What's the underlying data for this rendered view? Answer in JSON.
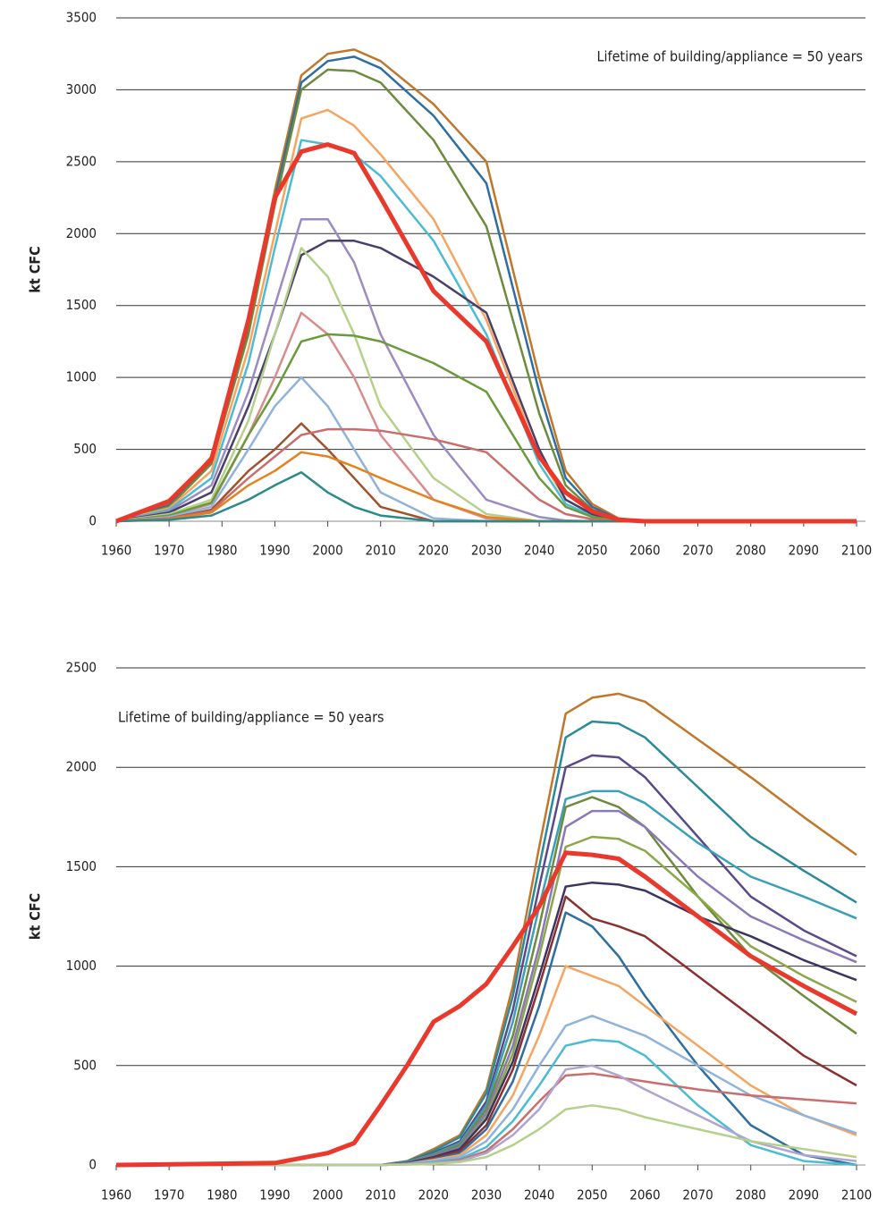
{
  "chart_data": [
    {
      "type": "line",
      "y_label": "kt CFC",
      "annotation": "Lifetime of building/appliance = 50 years",
      "annotation_corner": "top-right",
      "x": [
        1960,
        1970,
        1978,
        1985,
        1990,
        1995,
        2000,
        2005,
        2010,
        2020,
        2030,
        2040,
        2045,
        2050,
        2055,
        2060,
        2100
      ],
      "xlim": [
        1960,
        2100
      ],
      "xticks": [
        1960,
        1970,
        1980,
        1990,
        2000,
        2010,
        2020,
        2030,
        2040,
        2050,
        2060,
        2070,
        2080,
        2090,
        2100
      ],
      "ylim": [
        0,
        3500
      ],
      "yticks": [
        0,
        500,
        1000,
        1500,
        2000,
        2500,
        3000,
        3500
      ],
      "grid": true,
      "series": [
        {
          "color": "#c0772b",
          "values": [
            0,
            120,
            450,
            1400,
            2300,
            3100,
            3250,
            3280,
            3200,
            2900,
            2500,
            1000,
            350,
            120,
            20,
            0,
            0
          ]
        },
        {
          "color": "#2f6f9f",
          "values": [
            0,
            110,
            420,
            1350,
            2250,
            3050,
            3200,
            3230,
            3150,
            2820,
            2350,
            900,
            300,
            100,
            15,
            0,
            0
          ]
        },
        {
          "color": "#6e8b3d",
          "values": [
            0,
            100,
            400,
            1300,
            2200,
            3000,
            3140,
            3130,
            3050,
            2650,
            2050,
            750,
            250,
            80,
            10,
            0,
            0
          ]
        },
        {
          "color": "#f6a560",
          "values": [
            0,
            90,
            350,
            1200,
            2000,
            2800,
            2860,
            2750,
            2550,
            2100,
            1400,
            450,
            150,
            50,
            5,
            0,
            0
          ]
        },
        {
          "color": "#4bbcd4",
          "values": [
            0,
            80,
            300,
            1100,
            1900,
            2650,
            2620,
            2550,
            2400,
            1950,
            1300,
            400,
            120,
            40,
            5,
            0,
            0
          ]
        },
        {
          "color": "#9b8bc0",
          "values": [
            0,
            70,
            250,
            900,
            1500,
            2100,
            2100,
            1800,
            1300,
            600,
            150,
            30,
            5,
            0,
            0,
            0,
            0
          ]
        },
        {
          "color": "#4a3f6b",
          "values": [
            0,
            60,
            200,
            800,
            1300,
            1850,
            1950,
            1950,
            1900,
            1700,
            1450,
            500,
            150,
            50,
            5,
            0,
            0
          ]
        },
        {
          "color": "#b5d08a",
          "values": [
            0,
            50,
            150,
            700,
            1300,
            1900,
            1700,
            1300,
            800,
            300,
            50,
            0,
            0,
            0,
            0,
            0,
            0
          ]
        },
        {
          "color": "#d88c8c",
          "values": [
            0,
            40,
            120,
            600,
            1000,
            1450,
            1300,
            1000,
            600,
            150,
            20,
            0,
            0,
            0,
            0,
            0,
            0
          ]
        },
        {
          "color": "#6a9a3a",
          "values": [
            0,
            40,
            130,
            600,
            900,
            1250,
            1300,
            1290,
            1250,
            1100,
            900,
            300,
            100,
            30,
            5,
            0,
            0
          ]
        },
        {
          "color": "#8fb3dc",
          "values": [
            0,
            30,
            100,
            500,
            800,
            1000,
            800,
            500,
            200,
            20,
            0,
            0,
            0,
            0,
            0,
            0,
            0
          ]
        },
        {
          "color": "#a0522d",
          "values": [
            0,
            20,
            80,
            350,
            500,
            680,
            500,
            300,
            100,
            0,
            0,
            0,
            0,
            0,
            0,
            0,
            0
          ]
        },
        {
          "color": "#c96e6e",
          "values": [
            0,
            20,
            70,
            300,
            450,
            600,
            640,
            640,
            630,
            570,
            480,
            150,
            50,
            15,
            0,
            0,
            0
          ]
        },
        {
          "color": "#e6821e",
          "values": [
            0,
            15,
            60,
            250,
            350,
            480,
            450,
            380,
            300,
            150,
            30,
            0,
            0,
            0,
            0,
            0,
            0
          ]
        },
        {
          "color": "#2b8a8a",
          "values": [
            0,
            10,
            40,
            150,
            250,
            340,
            200,
            100,
            40,
            0,
            0,
            0,
            0,
            0,
            0,
            0,
            0
          ]
        },
        {
          "color": "#e8392c",
          "values": [
            0,
            140,
            430,
            1400,
            2250,
            2570,
            2620,
            2560,
            2250,
            1600,
            1250,
            450,
            200,
            70,
            10,
            0,
            0
          ],
          "width": 5
        }
      ]
    },
    {
      "type": "line",
      "y_label": "kt CFC",
      "annotation": "Lifetime of building/appliance = 50 years",
      "annotation_corner": "top-left",
      "x": [
        1960,
        1990,
        2000,
        2005,
        2010,
        2015,
        2020,
        2025,
        2030,
        2035,
        2040,
        2045,
        2050,
        2055,
        2060,
        2070,
        2080,
        2090,
        2100
      ],
      "xlim": [
        1960,
        2100
      ],
      "xticks": [
        1960,
        1970,
        1980,
        1990,
        2000,
        2010,
        2020,
        2030,
        2040,
        2050,
        2060,
        2070,
        2080,
        2090,
        2100
      ],
      "ylim": [
        0,
        2500
      ],
      "yticks": [
        0,
        500,
        1000,
        1500,
        2000,
        2500
      ],
      "grid": true,
      "series": [
        {
          "color": "#c0772b",
          "values": [
            0,
            0,
            0,
            0,
            0,
            20,
            80,
            150,
            380,
            900,
            1600,
            2270,
            2350,
            2370,
            2330,
            2140,
            1950,
            1750,
            1560
          ]
        },
        {
          "color": "#2b8a9a",
          "values": [
            0,
            0,
            0,
            0,
            0,
            18,
            70,
            140,
            360,
            850,
            1500,
            2150,
            2230,
            2220,
            2150,
            1900,
            1650,
            1480,
            1320
          ]
        },
        {
          "color": "#5a4a8a",
          "values": [
            0,
            0,
            0,
            0,
            0,
            15,
            60,
            120,
            320,
            780,
            1400,
            2000,
            2060,
            2050,
            1950,
            1650,
            1350,
            1180,
            1050
          ]
        },
        {
          "color": "#3aa0b8",
          "values": [
            0,
            0,
            0,
            0,
            0,
            15,
            55,
            110,
            300,
            720,
            1300,
            1840,
            1880,
            1880,
            1820,
            1620,
            1450,
            1350,
            1240
          ]
        },
        {
          "color": "#6e8b3d",
          "values": [
            0,
            0,
            0,
            0,
            0,
            12,
            50,
            100,
            280,
            650,
            1200,
            1800,
            1850,
            1800,
            1700,
            1350,
            1050,
            850,
            660
          ]
        },
        {
          "color": "#8a78b8",
          "values": [
            0,
            0,
            0,
            0,
            0,
            12,
            45,
            90,
            260,
            600,
            1100,
            1700,
            1780,
            1780,
            1700,
            1450,
            1250,
            1130,
            1020
          ]
        },
        {
          "color": "#8aa84a",
          "values": [
            0,
            0,
            0,
            0,
            0,
            10,
            40,
            80,
            240,
            560,
            1050,
            1600,
            1650,
            1640,
            1580,
            1350,
            1100,
            950,
            820
          ]
        },
        {
          "color": "#3d3560",
          "values": [
            0,
            0,
            0,
            0,
            0,
            10,
            40,
            80,
            230,
            520,
            950,
            1400,
            1420,
            1410,
            1380,
            1250,
            1150,
            1030,
            930
          ]
        },
        {
          "color": "#8b3030",
          "values": [
            0,
            0,
            0,
            0,
            0,
            8,
            35,
            70,
            200,
            480,
            900,
            1350,
            1240,
            1200,
            1150,
            950,
            750,
            550,
            400
          ]
        },
        {
          "color": "#2f6f9f",
          "values": [
            0,
            0,
            0,
            0,
            0,
            8,
            30,
            60,
            180,
            420,
            800,
            1270,
            1200,
            1050,
            850,
            500,
            200,
            50,
            0
          ]
        },
        {
          "color": "#f6a560",
          "values": [
            0,
            0,
            0,
            0,
            0,
            6,
            25,
            50,
            150,
            350,
            650,
            1000,
            950,
            900,
            800,
            600,
            400,
            250,
            150
          ]
        },
        {
          "color": "#8fb3dc",
          "values": [
            0,
            0,
            0,
            0,
            0,
            5,
            20,
            40,
            120,
            280,
            500,
            700,
            750,
            700,
            650,
            500,
            350,
            250,
            160
          ]
        },
        {
          "color": "#4bbcd4",
          "values": [
            0,
            0,
            0,
            0,
            0,
            4,
            15,
            30,
            90,
            220,
            400,
            600,
            630,
            620,
            550,
            300,
            100,
            20,
            0
          ]
        },
        {
          "color": "#c96e6e",
          "values": [
            0,
            0,
            0,
            0,
            0,
            3,
            10,
            25,
            70,
            180,
            320,
            450,
            460,
            440,
            420,
            380,
            350,
            330,
            310
          ]
        },
        {
          "color": "#b0a4d0",
          "values": [
            0,
            0,
            0,
            0,
            0,
            3,
            10,
            20,
            60,
            150,
            280,
            480,
            500,
            450,
            380,
            250,
            120,
            50,
            20
          ]
        },
        {
          "color": "#b5d08a",
          "values": [
            0,
            0,
            0,
            0,
            0,
            2,
            5,
            15,
            40,
            100,
            180,
            280,
            300,
            280,
            240,
            180,
            120,
            80,
            40
          ]
        },
        {
          "color": "#e8392c",
          "values": [
            0,
            10,
            60,
            110,
            300,
            500,
            720,
            800,
            910,
            1100,
            1300,
            1570,
            1560,
            1540,
            1450,
            1250,
            1050,
            900,
            760
          ],
          "width": 5
        }
      ]
    }
  ]
}
